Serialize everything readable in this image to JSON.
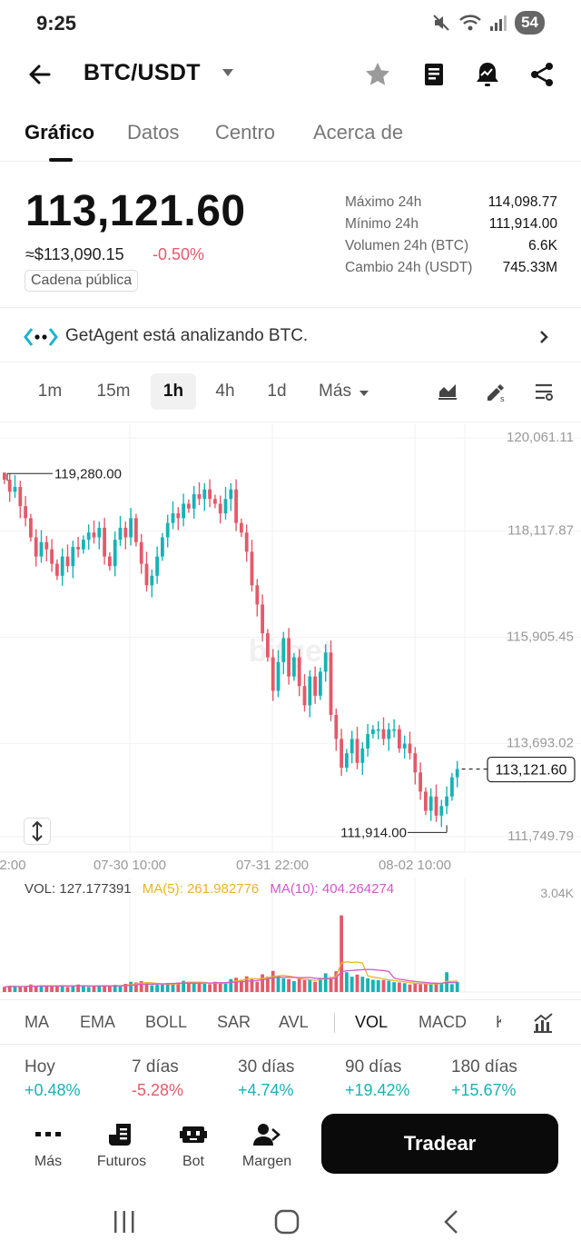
{
  "status": {
    "time": "9:25",
    "battery": "54"
  },
  "header": {
    "pair": "BTC/USDT"
  },
  "tabs": [
    "Gráfico",
    "Datos",
    "Centro",
    "Acerca de"
  ],
  "price": {
    "last": "113,121.60",
    "fiat": "≈$113,090.15",
    "change": "-0.50%",
    "chain_badge": "Cadena pública",
    "stats": [
      {
        "label": "Máximo 24h",
        "value": "114,098.77"
      },
      {
        "label": "Mínimo 24h",
        "value": "111,914.00"
      },
      {
        "label": "Volumen 24h (BTC)",
        "value": "6.6K"
      },
      {
        "label": "Cambio 24h (USDT)",
        "value": "745.33M"
      }
    ]
  },
  "agent": {
    "text": "GetAgent está analizando BTC."
  },
  "intervals": [
    "1m",
    "15m",
    "1h",
    "4h",
    "1d",
    "Más"
  ],
  "active_interval": "1h",
  "chart": {
    "watermark": "bitget",
    "y_ticks": [
      "120,061.11",
      "118,117.87",
      "115,905.45",
      "113,693.02",
      "111,749.79"
    ],
    "x_ticks": [
      "2:00",
      "07-30 10:00",
      "07-31 22:00",
      "08-02 10:00"
    ],
    "high_label": "119,280.00",
    "low_label": "111,914.00",
    "last_label": "113,121.60"
  },
  "volume": {
    "vol": "VOL: 127.177391",
    "ma5": "MA(5): 261.982776",
    "ma10": "MA(10): 404.264274",
    "max_tick": "3.04K"
  },
  "indicators": [
    "MA",
    "EMA",
    "BOLL",
    "SAR",
    "AVL",
    "VOL",
    "MACD",
    "K"
  ],
  "performance": [
    {
      "label": "Hoy",
      "value": "+0.48%",
      "dir": "pos"
    },
    {
      "label": "7 días",
      "value": "-5.28%",
      "dir": "neg"
    },
    {
      "label": "30 días",
      "value": "+4.74%",
      "dir": "pos"
    },
    {
      "label": "90 días",
      "value": "+19.42%",
      "dir": "pos"
    },
    {
      "label": "180 días",
      "value": "+15.67%",
      "dir": "pos"
    }
  ],
  "actions": [
    "Más",
    "Futuros",
    "Bot",
    "Margen"
  ],
  "trade_button": "Tradear",
  "colors": {
    "up": "#17b3b5",
    "down": "#e35a6a",
    "ma5": "#e8b521",
    "ma10": "#d458c9"
  },
  "chart_data": {
    "type": "candlestick",
    "interval": "1h",
    "y_range": [
      111749.79,
      120061.11
    ],
    "high": 119280.0,
    "low": 111914.0,
    "last": 113121.6,
    "closes": [
      119150,
      118900,
      119000,
      118600,
      118350,
      117950,
      117550,
      117850,
      117700,
      117400,
      117150,
      117550,
      117350,
      117750,
      117700,
      117900,
      118050,
      117950,
      118150,
      117550,
      117350,
      117900,
      118150,
      117950,
      118350,
      117850,
      117400,
      116950,
      117150,
      117550,
      117950,
      118250,
      118450,
      118350,
      118650,
      118550,
      118850,
      118750,
      118950,
      118750,
      118650,
      118450,
      118750,
      118950,
      118250,
      118050,
      117650,
      116950,
      116550,
      115950,
      115450,
      114750,
      115350,
      115850,
      115050,
      115450,
      114850,
      114450,
      115050,
      114650,
      115150,
      115550,
      114250,
      113750,
      113150,
      113450,
      113750,
      113250,
      113550,
      113850,
      113950,
      113950,
      113750,
      113950,
      113950,
      113550,
      113650,
      113450,
      113050,
      112650,
      112250,
      112550,
      112150,
      112350,
      112550,
      112950,
      113121.6
    ],
    "volumes": [
      150,
      180,
      160,
      150,
      170,
      220,
      170,
      200,
      160,
      180,
      190,
      200,
      150,
      160,
      220,
      180,
      150,
      170,
      200,
      190,
      160,
      210,
      170,
      240,
      300,
      280,
      320,
      250,
      200,
      210,
      220,
      260,
      250,
      280,
      330,
      300,
      280,
      260,
      240,
      230,
      300,
      250,
      270,
      380,
      420,
      360,
      460,
      370,
      300,
      520,
      450,
      620,
      480,
      400,
      380,
      320,
      400,
      350,
      350,
      300,
      410,
      550,
      440,
      610,
      2250,
      580,
      450,
      510,
      450,
      400,
      360,
      350,
      350,
      330,
      290,
      280,
      260,
      220,
      250,
      230,
      250,
      220,
      250,
      270,
      580,
      230,
      300
    ]
  }
}
